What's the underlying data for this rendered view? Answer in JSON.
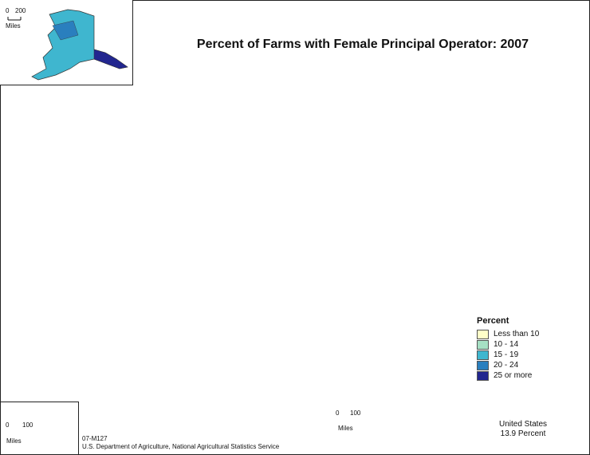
{
  "title": "Percent of Farms with Female Principal Operator:  2007",
  "legend": {
    "title": "Percent",
    "items": [
      {
        "label": "Less than 10",
        "color": "#ffffc8"
      },
      {
        "label": "10 - 14",
        "color": "#a6e0c4"
      },
      {
        "label": "15 - 19",
        "color": "#3fb6cf"
      },
      {
        "label": "20 - 24",
        "color": "#2a7fbe"
      },
      {
        "label": "25 or more",
        "color": "#22268f"
      }
    ]
  },
  "scales": {
    "alaska": {
      "min": "0",
      "max": "200",
      "unit": "Miles"
    },
    "hawaii": {
      "min": "0",
      "max": "100",
      "unit": "Miles"
    },
    "main": {
      "min": "0",
      "max": "100",
      "unit": "Miles"
    }
  },
  "summary": {
    "line1": "United States",
    "line2": "13.9 Percent"
  },
  "footer": {
    "map_id": "07-M127",
    "source": "U.S. Department of Agriculture, National Agricultural Statistics Service"
  }
}
